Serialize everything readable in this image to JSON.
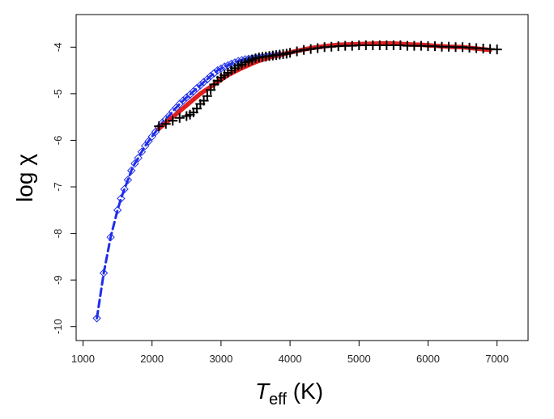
{
  "chart_data": {
    "type": "scatter",
    "title": "",
    "xlabel_main": "T",
    "xlabel_sub": "eff",
    "xlabel_unit": " (K)",
    "ylabel": "log χ",
    "xlim": [
      900,
      7450
    ],
    "ylim": [
      -10.3,
      -3.3
    ],
    "xticks": [
      1000,
      2000,
      3000,
      4000,
      5000,
      6000,
      7000
    ],
    "yticks": [
      -10,
      -9,
      -8,
      -7,
      -6,
      -5,
      -4
    ],
    "series": [
      {
        "name": "blue-diamond-dashed",
        "color": "#1f2ee8",
        "marker": "diamond",
        "line": "dashed",
        "x": [
          1200,
          1300,
          1400,
          1500,
          1550,
          1600,
          1650,
          1700,
          1750,
          1800,
          1850,
          1900,
          1950,
          2000,
          2050,
          2100,
          2150,
          2200,
          2250,
          2300,
          2350,
          2400,
          2450,
          2500,
          2550,
          2600,
          2650,
          2700,
          2750,
          2800,
          2850,
          2900,
          2950,
          3000,
          3050,
          3100,
          3150,
          3200,
          3250,
          3300,
          3350,
          3400,
          3450,
          3500,
          3550,
          3600,
          3650,
          3700,
          3750,
          3800,
          3850
        ],
        "y": [
          -9.82,
          -8.85,
          -8.08,
          -7.5,
          -7.25,
          -7.05,
          -6.85,
          -6.65,
          -6.5,
          -6.38,
          -6.25,
          -6.12,
          -6.02,
          -5.92,
          -5.82,
          -5.72,
          -5.62,
          -5.55,
          -5.47,
          -5.38,
          -5.3,
          -5.22,
          -5.15,
          -5.08,
          -5.02,
          -4.95,
          -4.88,
          -4.82,
          -4.75,
          -4.69,
          -4.62,
          -4.56,
          -4.5,
          -4.46,
          -4.42,
          -4.39,
          -4.36,
          -4.33,
          -4.3,
          -4.28,
          -4.26,
          -4.25,
          -4.24,
          -4.23,
          -4.22,
          -4.21,
          -4.2,
          -4.19,
          -4.18,
          -4.17,
          -4.16
        ]
      },
      {
        "name": "red-solid",
        "color": "#e21f1f",
        "marker": "none",
        "line": "solid-thick",
        "x": [
          2100,
          2300,
          2500,
          2700,
          2900,
          3100,
          3300,
          3500,
          3700,
          3900,
          4100,
          4300,
          4500,
          4700,
          4900,
          5100,
          5300,
          5500,
          5700,
          5900,
          6100,
          6300,
          6500,
          6700,
          6900
        ],
        "y": [
          -5.75,
          -5.5,
          -5.25,
          -5.0,
          -4.8,
          -4.6,
          -4.45,
          -4.32,
          -4.22,
          -4.15,
          -4.08,
          -4.02,
          -3.98,
          -3.95,
          -3.94,
          -3.93,
          -3.92,
          -3.92,
          -3.94,
          -3.95,
          -3.97,
          -3.99,
          -4.0,
          -4.03,
          -4.06
        ]
      },
      {
        "name": "black-plus",
        "color": "#000000",
        "marker": "plus",
        "line": "none",
        "x": [
          2100,
          2200,
          2300,
          2400,
          2500,
          2550,
          2600,
          2650,
          2700,
          2750,
          2800,
          2850,
          2900,
          2950,
          3000,
          3050,
          3100,
          3150,
          3200,
          3250,
          3300,
          3350,
          3400,
          3450,
          3500,
          3550,
          3600,
          3650,
          3700,
          3750,
          3800,
          3850,
          3900,
          3950,
          4000,
          4100,
          4200,
          4300,
          4400,
          4500,
          4600,
          4700,
          4800,
          4900,
          5000,
          5100,
          5200,
          5300,
          5400,
          5500,
          5600,
          5700,
          5800,
          5900,
          6000,
          6100,
          6200,
          6300,
          6400,
          6500,
          6600,
          6700,
          6800,
          6900,
          7000
        ],
        "y": [
          -5.7,
          -5.65,
          -5.58,
          -5.52,
          -5.48,
          -5.45,
          -5.4,
          -5.32,
          -5.22,
          -5.15,
          -5.05,
          -4.92,
          -4.8,
          -4.72,
          -4.65,
          -4.6,
          -4.55,
          -4.5,
          -4.45,
          -4.4,
          -4.37,
          -4.33,
          -4.3,
          -4.27,
          -4.24,
          -4.22,
          -4.21,
          -4.2,
          -4.19,
          -4.18,
          -4.17,
          -4.16,
          -4.15,
          -4.14,
          -4.12,
          -4.09,
          -4.06,
          -4.04,
          -4.02,
          -4.0,
          -3.99,
          -3.98,
          -3.97,
          -3.97,
          -3.96,
          -3.96,
          -3.96,
          -3.96,
          -3.96,
          -3.96,
          -3.96,
          -3.97,
          -3.97,
          -3.97,
          -3.98,
          -3.98,
          -3.99,
          -3.99,
          -4.0,
          -4.0,
          -4.01,
          -4.02,
          -4.03,
          -4.04,
          -4.05
        ]
      }
    ]
  }
}
